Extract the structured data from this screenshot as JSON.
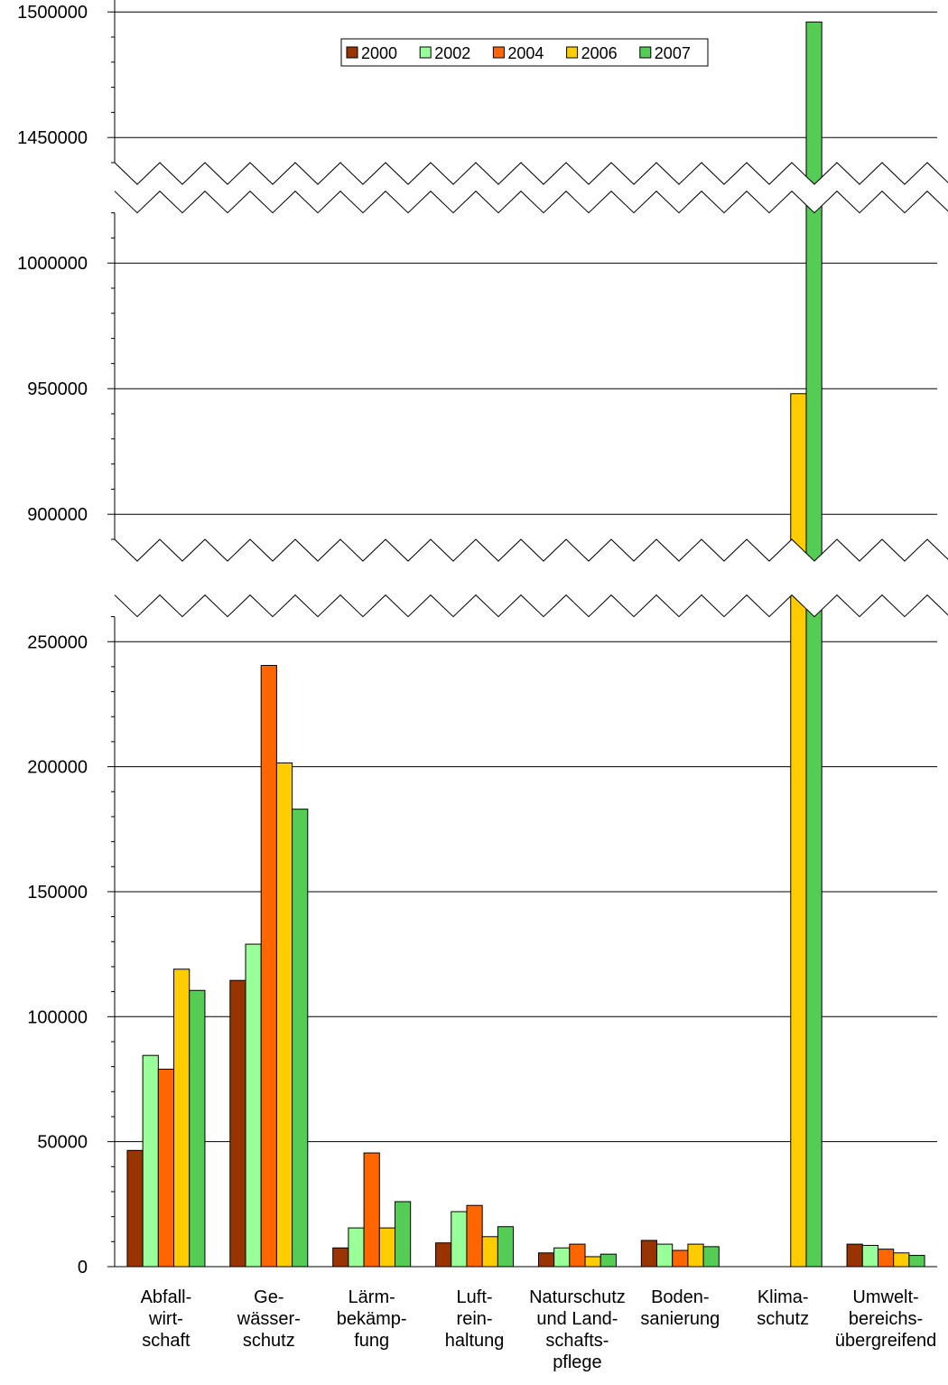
{
  "chart_data": {
    "type": "bar",
    "title": "",
    "xlabel": "",
    "ylabel": "",
    "axis_breaks": [
      [
        260000,
        890000
      ],
      [
        1020000,
        1440000
      ]
    ],
    "grid": true,
    "legend_position": "top-right",
    "y_ticks": [
      {
        "value": 0,
        "label": "0"
      },
      {
        "value": 50000,
        "label": "50000"
      },
      {
        "value": 100000,
        "label": "100000"
      },
      {
        "value": 150000,
        "label": "150000"
      },
      {
        "value": 200000,
        "label": "200000"
      },
      {
        "value": 250000,
        "label": "250000"
      },
      {
        "value": 900000,
        "label": "900000"
      },
      {
        "value": 950000,
        "label": "950000"
      },
      {
        "value": 1000000,
        "label": "1000000"
      },
      {
        "value": 1450000,
        "label": "1450000"
      },
      {
        "value": 1500000,
        "label": "1500000"
      }
    ],
    "categories": [
      [
        "Abfall-",
        "wirt-",
        "schaft"
      ],
      [
        "Ge-",
        "wässer-",
        "schutz"
      ],
      [
        "Lärm-",
        "bekämp-",
        "fung"
      ],
      [
        "Luft-",
        "rein-",
        "haltung"
      ],
      [
        "Naturschutz",
        "und Land-",
        "schafts-",
        "pflege"
      ],
      [
        "Boden-",
        "sanierung"
      ],
      [
        "Klima-",
        "schutz"
      ],
      [
        "Umwelt-",
        "bereichs-",
        "übergreifend"
      ]
    ],
    "series": [
      {
        "name": "2000",
        "color": "#993300",
        "values": [
          46500,
          114500,
          7500,
          9500,
          5500,
          10500,
          0,
          9000
        ]
      },
      {
        "name": "2002",
        "color": "#99FF99",
        "values": [
          84500,
          129000,
          15500,
          22000,
          7500,
          9000,
          0,
          8500
        ]
      },
      {
        "name": "2004",
        "color": "#FF6600",
        "values": [
          79000,
          240500,
          45500,
          24500,
          9000,
          6500,
          0,
          7000
        ]
      },
      {
        "name": "2006",
        "color": "#FFCC00",
        "values": [
          119000,
          201500,
          15500,
          12000,
          4000,
          9000,
          948000,
          5500
        ]
      },
      {
        "name": "2007",
        "color": "#55CC55",
        "values": [
          110500,
          183000,
          26000,
          16000,
          5000,
          8000,
          1496000,
          4500
        ]
      }
    ]
  }
}
